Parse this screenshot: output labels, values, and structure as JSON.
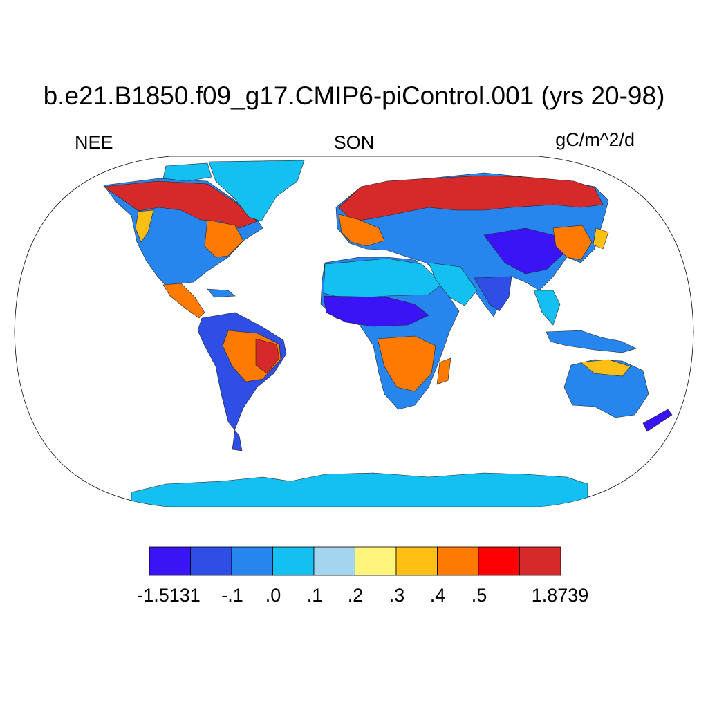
{
  "title": "b.e21.B1850.f09_g17.CMIP6-piControl.001 (yrs 20-98)",
  "left_label": "NEE",
  "center_label": "SON",
  "right_label": "gC/m^2/d",
  "colors": {
    "ocean": "#ffffff",
    "outline": "#000000",
    "bins": [
      "#3b14f5",
      "#2e4ee6",
      "#2686ee",
      "#14bff2",
      "#a3d5ef",
      "#fff57a",
      "#ffbf14",
      "#ff7a00",
      "#ff0000",
      "#d62a2a"
    ]
  },
  "colorbar": {
    "labels": [
      "-1.5131",
      "-.1",
      ".0",
      ".1",
      ".2",
      ".3",
      ".4",
      ".5",
      "1.8739"
    ]
  }
}
